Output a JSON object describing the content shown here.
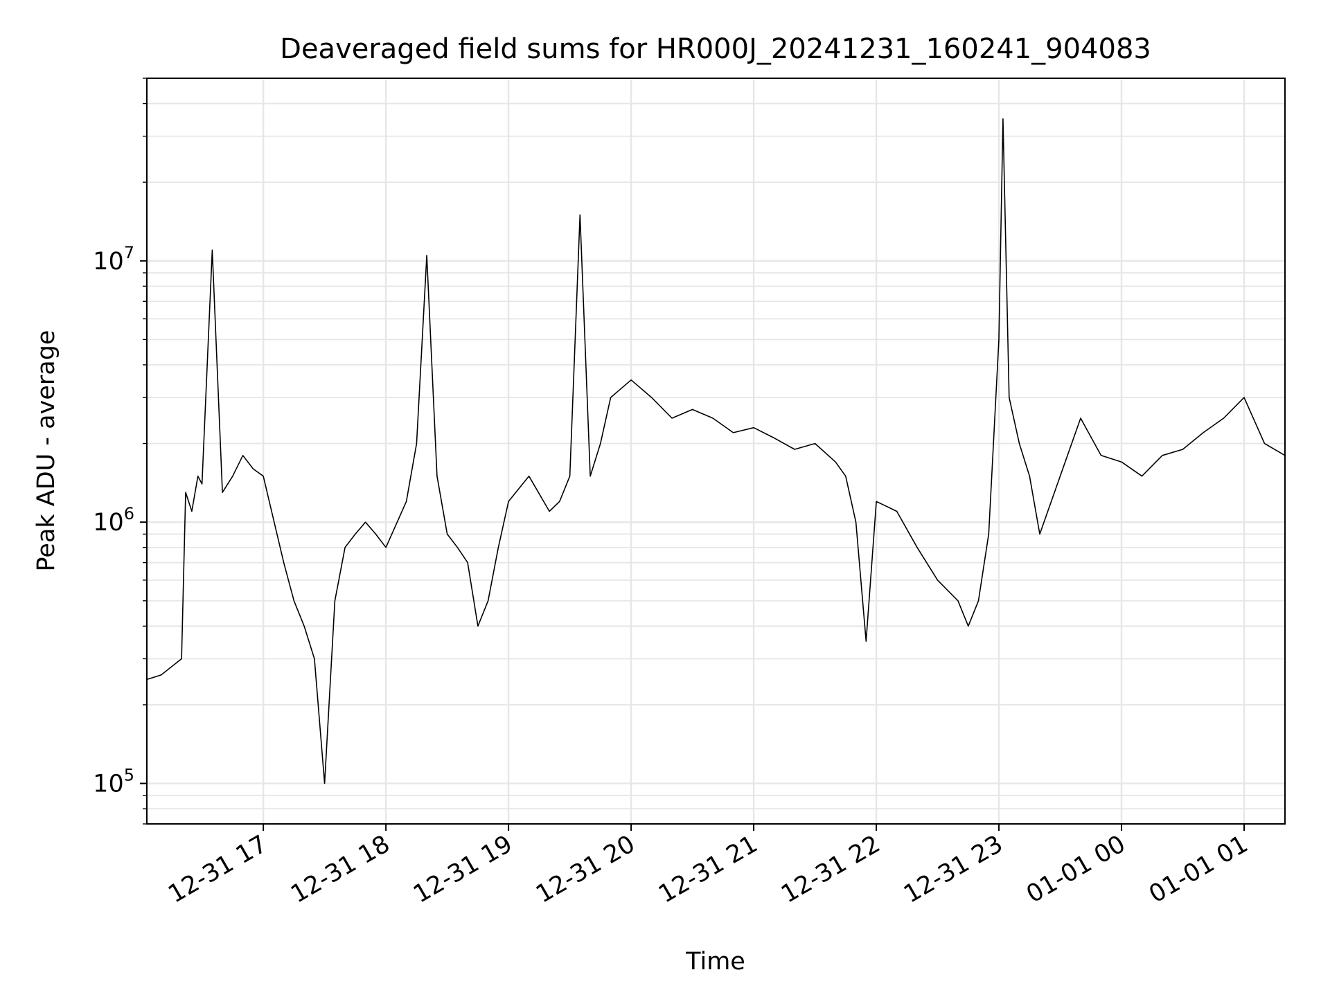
{
  "chart_data": {
    "type": "line",
    "title": "Deaveraged field sums for HR000J_20241231_160241_904083",
    "xlabel": "Time",
    "ylabel": "Peak ADU - average",
    "yscale": "log",
    "ylim": [
      70000,
      50000000
    ],
    "xlim": [
      "2024-12-31 16:03",
      "2025-01-01 01:20"
    ],
    "grid": true,
    "line_color": "#000000",
    "x_ticks": [
      {
        "t": "2024-12-31 17:00",
        "label": "12-31 17"
      },
      {
        "t": "2024-12-31 18:00",
        "label": "12-31 18"
      },
      {
        "t": "2024-12-31 19:00",
        "label": "12-31 19"
      },
      {
        "t": "2024-12-31 20:00",
        "label": "12-31 20"
      },
      {
        "t": "2024-12-31 21:00",
        "label": "12-31 21"
      },
      {
        "t": "2024-12-31 22:00",
        "label": "12-31 22"
      },
      {
        "t": "2024-12-31 23:00",
        "label": "12-31 23"
      },
      {
        "t": "2025-01-01 00:00",
        "label": "01-01 00"
      },
      {
        "t": "2025-01-01 01:00",
        "label": "01-01 01"
      }
    ],
    "y_ticks": [
      {
        "value": 100000,
        "base": "10",
        "exp": "5"
      },
      {
        "value": 1000000,
        "base": "10",
        "exp": "6"
      },
      {
        "value": 10000000,
        "base": "10",
        "exp": "7"
      }
    ],
    "series": [
      {
        "x": [
          "2024-12-31 16:03",
          "2024-12-31 16:10",
          "2024-12-31 16:20",
          "2024-12-31 16:22",
          "2024-12-31 16:25",
          "2024-12-31 16:28",
          "2024-12-31 16:30",
          "2024-12-31 16:35",
          "2024-12-31 16:40",
          "2024-12-31 16:45",
          "2024-12-31 16:50",
          "2024-12-31 16:55",
          "2024-12-31 17:00",
          "2024-12-31 17:10",
          "2024-12-31 17:15",
          "2024-12-31 17:20",
          "2024-12-31 17:25",
          "2024-12-31 17:30",
          "2024-12-31 17:35",
          "2024-12-31 17:40",
          "2024-12-31 17:45",
          "2024-12-31 17:50",
          "2024-12-31 17:55",
          "2024-12-31 18:00",
          "2024-12-31 18:10",
          "2024-12-31 18:15",
          "2024-12-31 18:20",
          "2024-12-31 18:25",
          "2024-12-31 18:30",
          "2024-12-31 18:35",
          "2024-12-31 18:40",
          "2024-12-31 18:45",
          "2024-12-31 18:50",
          "2024-12-31 18:55",
          "2024-12-31 19:00",
          "2024-12-31 19:10",
          "2024-12-31 19:20",
          "2024-12-31 19:25",
          "2024-12-31 19:30",
          "2024-12-31 19:35",
          "2024-12-31 19:40",
          "2024-12-31 19:45",
          "2024-12-31 19:50",
          "2024-12-31 20:00",
          "2024-12-31 20:10",
          "2024-12-31 20:20",
          "2024-12-31 20:30",
          "2024-12-31 20:40",
          "2024-12-31 20:50",
          "2024-12-31 21:00",
          "2024-12-31 21:10",
          "2024-12-31 21:20",
          "2024-12-31 21:30",
          "2024-12-31 21:40",
          "2024-12-31 21:45",
          "2024-12-31 21:50",
          "2024-12-31 21:55",
          "2024-12-31 22:00",
          "2024-12-31 22:10",
          "2024-12-31 22:20",
          "2024-12-31 22:30",
          "2024-12-31 22:40",
          "2024-12-31 22:45",
          "2024-12-31 22:50",
          "2024-12-31 22:55",
          "2024-12-31 23:00",
          "2024-12-31 23:02",
          "2024-12-31 23:05",
          "2024-12-31 23:10",
          "2024-12-31 23:15",
          "2024-12-31 23:20",
          "2024-12-31 23:30",
          "2024-12-31 23:40",
          "2024-12-31 23:50",
          "2025-01-01 00:00",
          "2025-01-01 00:10",
          "2025-01-01 00:20",
          "2025-01-01 00:30",
          "2025-01-01 00:40",
          "2025-01-01 00:50",
          "2025-01-01 01:00",
          "2025-01-01 01:10",
          "2025-01-01 01:20"
        ],
        "y": [
          250000,
          260000,
          300000,
          1300000,
          1100000,
          1500000,
          1400000,
          11000000,
          1300000,
          1500000,
          1800000,
          1600000,
          1500000,
          700000,
          500000,
          400000,
          300000,
          100000,
          500000,
          800000,
          900000,
          1000000,
          900000,
          800000,
          1200000,
          2000000,
          10500000,
          1500000,
          900000,
          800000,
          700000,
          400000,
          500000,
          800000,
          1200000,
          1500000,
          1100000,
          1200000,
          1500000,
          15000000,
          1500000,
          2000000,
          3000000,
          3500000,
          3000000,
          2500000,
          2700000,
          2500000,
          2200000,
          2300000,
          2100000,
          1900000,
          2000000,
          1700000,
          1500000,
          1000000,
          350000,
          1200000,
          1100000,
          800000,
          600000,
          500000,
          400000,
          500000,
          900000,
          5000000,
          35000000,
          3000000,
          2000000,
          1500000,
          900000,
          1500000,
          2500000,
          1800000,
          1700000,
          1500000,
          1800000,
          1900000,
          2200000,
          2500000,
          3000000,
          2000000,
          1800000
        ]
      }
    ]
  }
}
